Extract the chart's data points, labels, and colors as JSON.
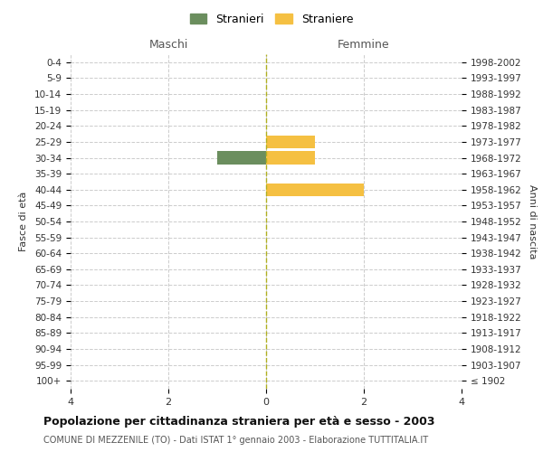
{
  "age_groups": [
    "100+",
    "95-99",
    "90-94",
    "85-89",
    "80-84",
    "75-79",
    "70-74",
    "65-69",
    "60-64",
    "55-59",
    "50-54",
    "45-49",
    "40-44",
    "35-39",
    "30-34",
    "25-29",
    "20-24",
    "15-19",
    "10-14",
    "5-9",
    "0-4"
  ],
  "birth_years": [
    "≤ 1902",
    "1903-1907",
    "1908-1912",
    "1913-1917",
    "1918-1922",
    "1923-1927",
    "1928-1932",
    "1933-1937",
    "1938-1942",
    "1943-1947",
    "1948-1952",
    "1953-1957",
    "1958-1962",
    "1963-1967",
    "1968-1972",
    "1973-1977",
    "1978-1982",
    "1983-1987",
    "1988-1992",
    "1993-1997",
    "1998-2002"
  ],
  "males": [
    0,
    0,
    0,
    0,
    0,
    0,
    0,
    0,
    0,
    0,
    0,
    0,
    0,
    0,
    1,
    0,
    0,
    0,
    0,
    0,
    0
  ],
  "females": [
    0,
    0,
    0,
    0,
    0,
    0,
    0,
    0,
    0,
    0,
    0,
    0,
    2,
    0,
    1,
    1,
    0,
    0,
    0,
    0,
    0
  ],
  "male_color": "#6b8e5e",
  "female_color": "#f5c042",
  "xlim": 4,
  "title": "Popolazione per cittadinanza straniera per età e sesso - 2003",
  "subtitle": "COMUNE DI MEZZENILE (TO) - Dati ISTAT 1° gennaio 2003 - Elaborazione TUTTITALIA.IT",
  "ylabel_left": "Fasce di età",
  "ylabel_right": "Anni di nascita",
  "legend_male": "Stranieri",
  "legend_female": "Straniere",
  "header_left": "Maschi",
  "header_right": "Femmine",
  "background_color": "#ffffff",
  "grid_color": "#cccccc",
  "bar_height": 0.8
}
